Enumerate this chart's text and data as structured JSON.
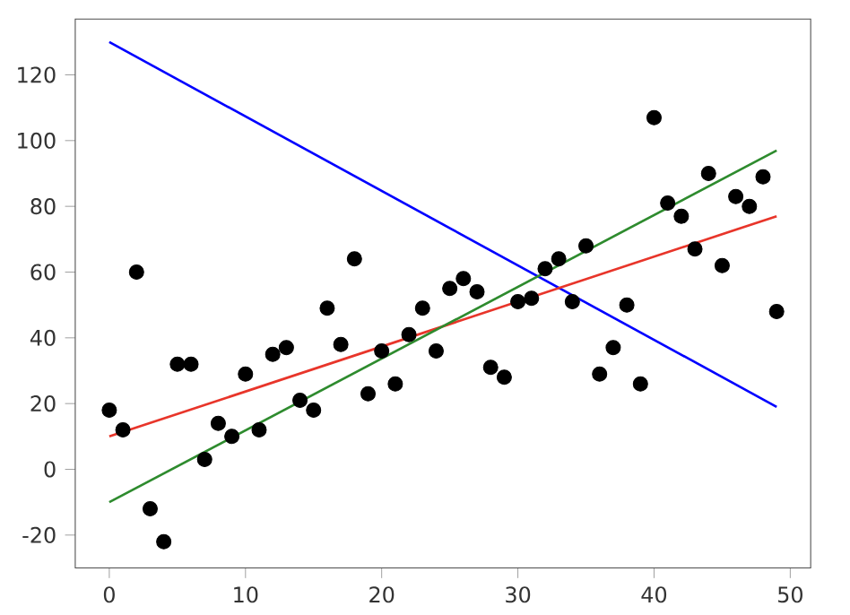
{
  "chart_data": {
    "type": "scatter",
    "xlim": [
      -2.5,
      51.5
    ],
    "ylim": [
      -30,
      137
    ],
    "xticks": [
      0,
      10,
      20,
      30,
      40,
      50
    ],
    "yticks": [
      -20,
      0,
      20,
      40,
      60,
      80,
      100,
      120
    ],
    "grid": false,
    "marker": "circle",
    "series": [
      {
        "color": "#000000",
        "x": [
          0,
          1,
          2,
          3,
          4,
          5,
          6,
          7,
          8,
          9,
          10,
          11,
          12,
          13,
          14,
          15,
          16,
          17,
          18,
          19,
          20,
          21,
          22,
          23,
          24,
          25,
          26,
          27,
          28,
          29,
          30,
          31,
          32,
          33,
          34,
          35,
          36,
          37,
          38,
          39,
          40,
          41,
          42,
          43,
          44,
          45,
          46,
          47,
          48,
          49
        ],
        "values": [
          18,
          12,
          60,
          -12,
          -22,
          32,
          32,
          3,
          14,
          10,
          29,
          12,
          35,
          37,
          21,
          18,
          49,
          38,
          64,
          23,
          36,
          26,
          41,
          49,
          36,
          55,
          58,
          54,
          31,
          28,
          51,
          52,
          61,
          64,
          51,
          68,
          29,
          37,
          50,
          26,
          107,
          81,
          77,
          67,
          90,
          62,
          83,
          80,
          89,
          48
        ]
      },
      {
        "type": "line",
        "color": "#0000ff",
        "marker": "none",
        "x": [
          0,
          49
        ],
        "values": [
          130,
          19
        ]
      },
      {
        "type": "line",
        "color": "#e8352a",
        "marker": "none",
        "x": [
          0,
          49
        ],
        "values": [
          10,
          77
        ]
      },
      {
        "type": "line",
        "color": "#2e8b2e",
        "marker": "none",
        "x": [
          0,
          49
        ],
        "values": [
          -10,
          97
        ]
      }
    ]
  }
}
